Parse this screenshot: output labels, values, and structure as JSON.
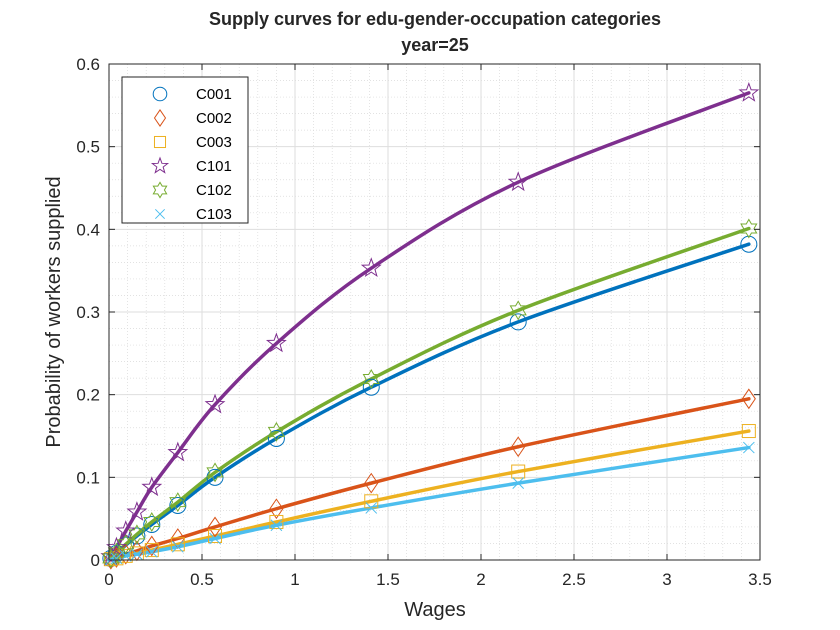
{
  "chart_data": {
    "type": "line",
    "title": [
      "Supply curves for edu-gender-occupation categories",
      "year=25"
    ],
    "xlabel": "Wages",
    "ylabel": "Probability of workers supplied",
    "xlim": [
      0,
      3.5
    ],
    "ylim": [
      0,
      0.6
    ],
    "xticks": [
      0,
      0.5,
      1,
      1.5,
      2,
      2.5,
      3,
      3.5
    ],
    "xtick_labels": [
      "0",
      "0.5",
      "1",
      "1.5",
      "2",
      "2.5",
      "3",
      "3.5"
    ],
    "yticks": [
      0,
      0.1,
      0.2,
      0.3,
      0.4,
      0.5,
      0.6
    ],
    "ytick_labels": [
      "0",
      "0.1",
      "0.2",
      "0.3",
      "0.4",
      "0.5",
      "0.6"
    ],
    "grid": "on (major and minor)",
    "legend_position": "top-left",
    "x": [
      0.01,
      0.04,
      0.09,
      0.15,
      0.23,
      0.37,
      0.57,
      0.9,
      1.41,
      2.2,
      3.44
    ],
    "series": [
      {
        "name": "C001",
        "marker": "circle",
        "color": "#0072BD",
        "values": [
          0.002,
          0.008,
          0.018,
          0.029,
          0.043,
          0.066,
          0.1,
          0.147,
          0.209,
          0.288,
          0.382
        ]
      },
      {
        "name": "C002",
        "marker": "diamond",
        "color": "#D95319",
        "values": [
          0.001,
          0.003,
          0.007,
          0.011,
          0.017,
          0.026,
          0.04,
          0.062,
          0.093,
          0.137,
          0.195
        ]
      },
      {
        "name": "C003",
        "marker": "square",
        "color": "#EDB120",
        "values": [
          0.001,
          0.002,
          0.005,
          0.008,
          0.012,
          0.019,
          0.029,
          0.046,
          0.071,
          0.107,
          0.156
        ]
      },
      {
        "name": "C101",
        "marker": "pentagram",
        "color": "#7E2F8E",
        "values": [
          0.004,
          0.015,
          0.035,
          0.058,
          0.088,
          0.13,
          0.188,
          0.262,
          0.353,
          0.457,
          0.565
        ]
      },
      {
        "name": "C102",
        "marker": "hexagram",
        "color": "#77AC30",
        "values": [
          0.002,
          0.009,
          0.019,
          0.031,
          0.046,
          0.07,
          0.106,
          0.155,
          0.219,
          0.302,
          0.401
        ]
      },
      {
        "name": "C103",
        "marker": "x",
        "color": "#4DBEEE",
        "values": [
          0.001,
          0.002,
          0.005,
          0.007,
          0.01,
          0.016,
          0.026,
          0.042,
          0.063,
          0.093,
          0.136
        ]
      }
    ]
  }
}
